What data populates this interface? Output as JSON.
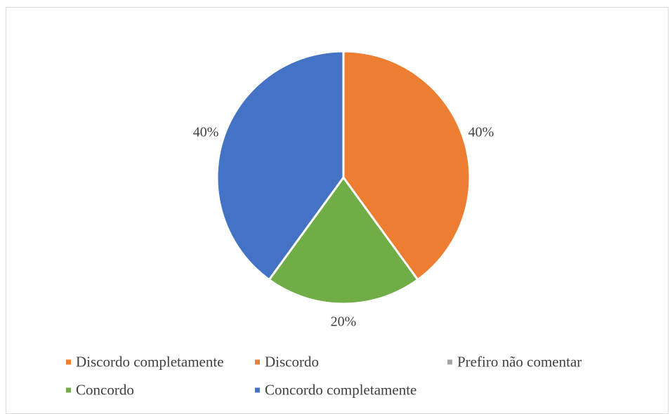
{
  "chart_data": {
    "type": "pie",
    "title": "",
    "categories": [
      "Discordo completamente",
      "Discordo",
      "Prefiro não comentar",
      "Concordo",
      "Concordo completamente"
    ],
    "values": [
      0,
      40,
      0,
      20,
      40
    ],
    "data_labels": [
      "",
      "40%",
      "",
      "20%",
      "40%"
    ],
    "colors": [
      "#ED7D31",
      "#ED7D31",
      "#A5A5A5",
      "#70AD47",
      "#4472C4"
    ],
    "start_angle_deg": 0,
    "direction": "clockwise",
    "legend_position": "bottom"
  }
}
